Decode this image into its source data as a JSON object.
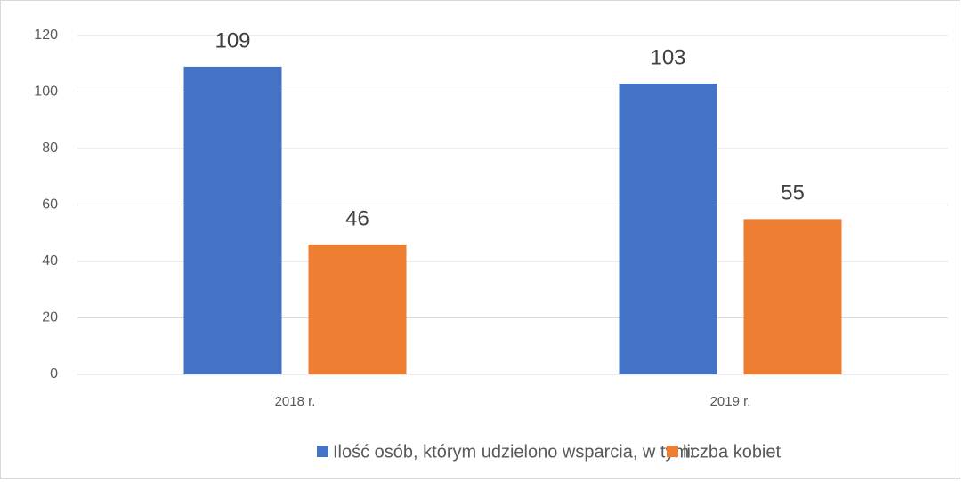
{
  "chart_data": {
    "type": "bar",
    "categories": [
      "2018 r.",
      "2019 r."
    ],
    "series": [
      {
        "name": "Ilość osób, którym udzielono wsparcia, w tym:",
        "color": "#4472c4",
        "values": [
          109,
          103
        ]
      },
      {
        "name": "liczba kobiet",
        "color": "#ed7d31",
        "values": [
          46,
          55
        ]
      }
    ],
    "ylim": [
      0,
      120
    ],
    "yticks": [
      0,
      20,
      40,
      60,
      80,
      100,
      120
    ],
    "grid": true,
    "legend": "bottom"
  }
}
